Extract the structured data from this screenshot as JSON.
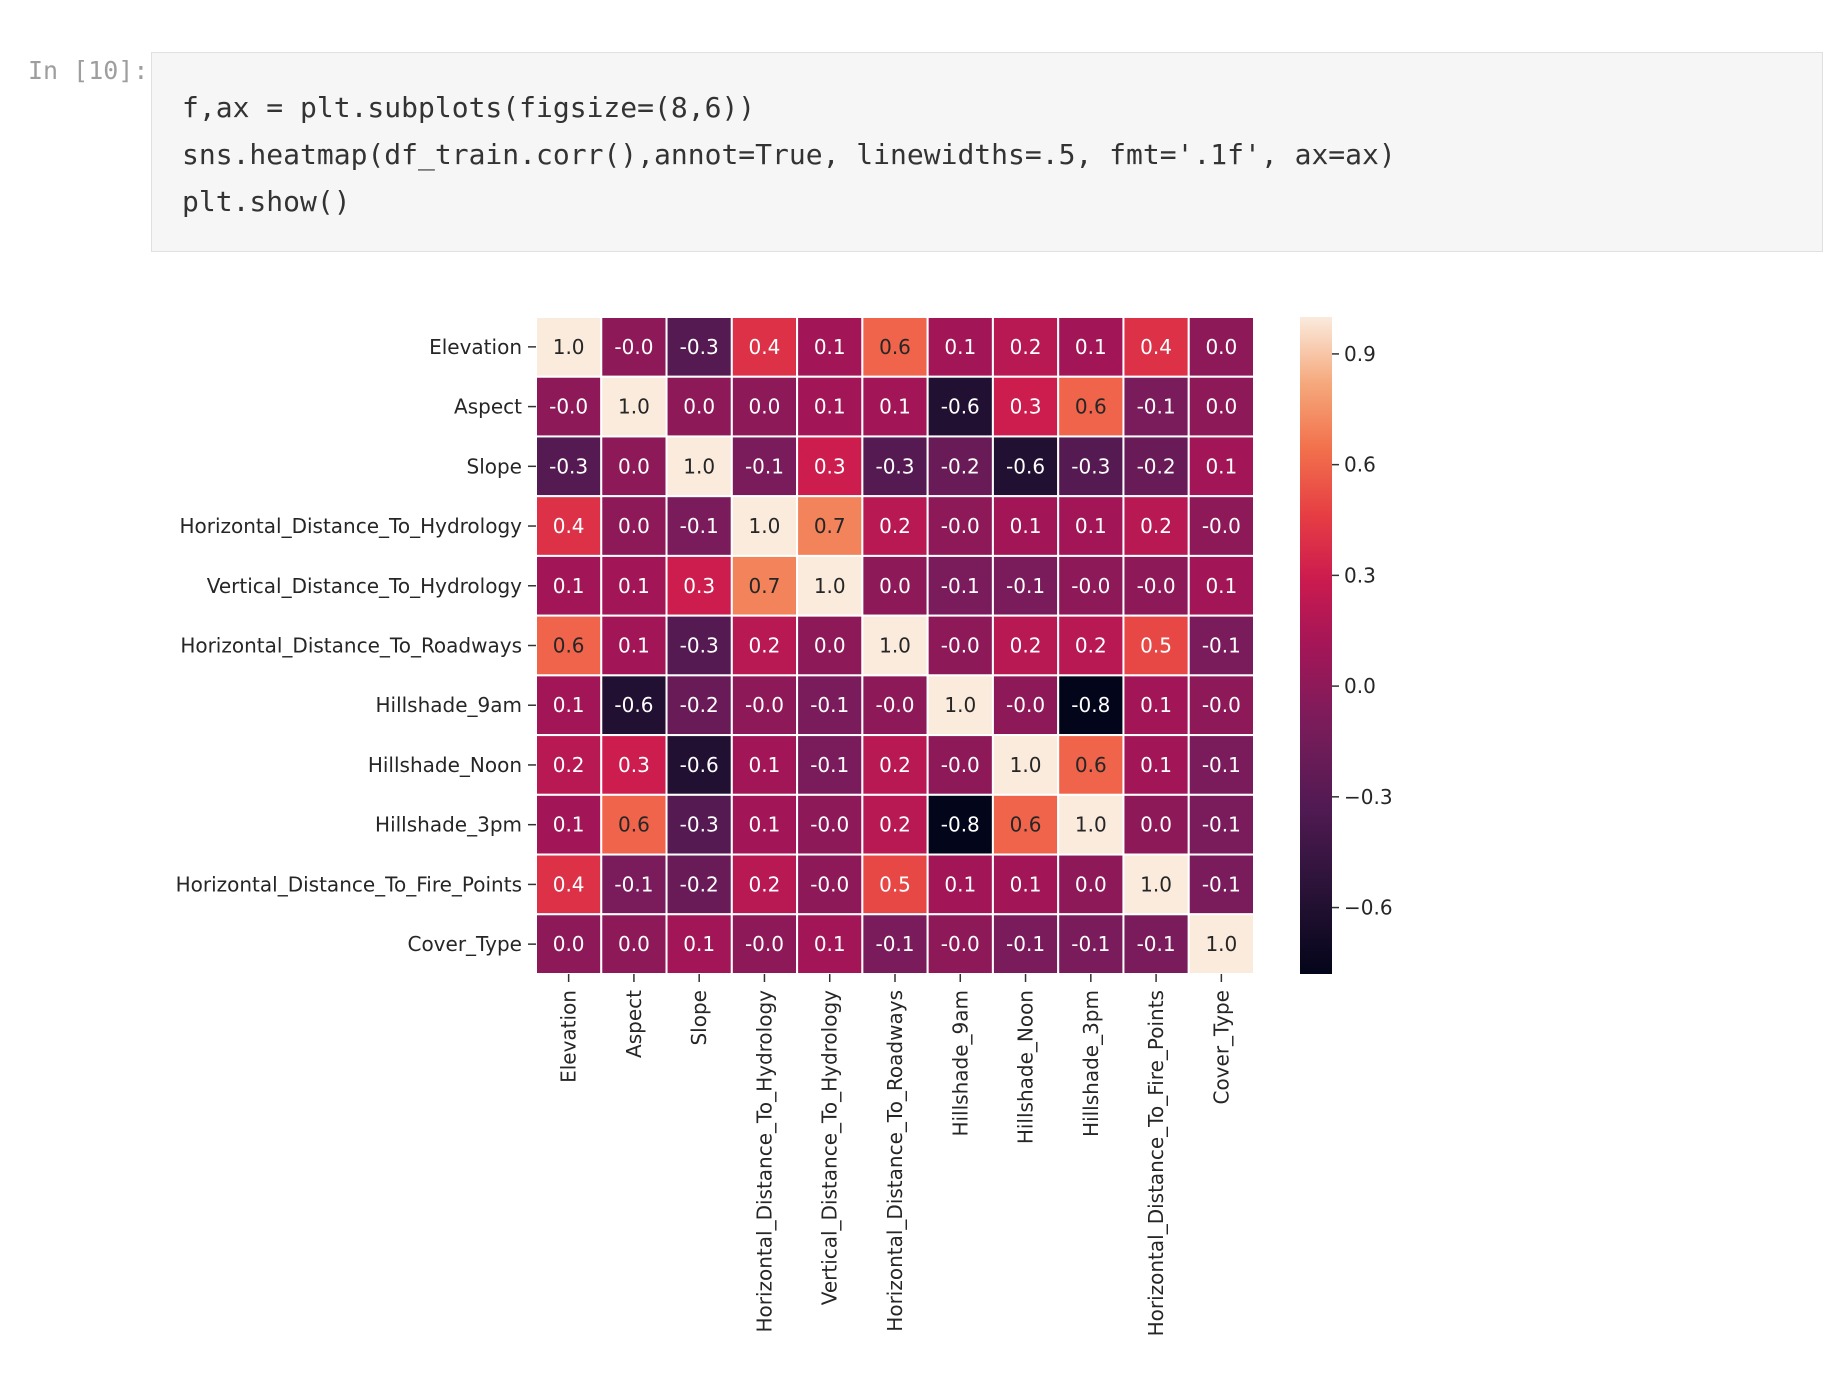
{
  "cell": {
    "prompt": "In [10]:",
    "code_lines": [
      "f,ax = plt.subplots(figsize=(8,6))",
      "sns.heatmap(df_train.corr(),annot=True, linewidths=.5, fmt='.1f', ax=ax)",
      "plt.show()"
    ]
  },
  "colors": {
    "code_background": "#f6f6f6",
    "cell_border": "#e0e0e0",
    "prompt_text": "#9e9e9e",
    "colormap": "rocket"
  },
  "chart_data": {
    "type": "heatmap",
    "title": "",
    "xlabel": "",
    "ylabel": "",
    "labels": [
      "Elevation",
      "Aspect",
      "Slope",
      "Horizontal_Distance_To_Hydrology",
      "Vertical_Distance_To_Hydrology",
      "Horizontal_Distance_To_Roadways",
      "Hillshade_9am",
      "Hillshade_Noon",
      "Hillshade_3pm",
      "Horizontal_Distance_To_Fire_Points",
      "Cover_Type"
    ],
    "matrix_text": [
      [
        "1.0",
        "-0.0",
        "-0.3",
        "0.4",
        "0.1",
        "0.6",
        "0.1",
        "0.2",
        "0.1",
        "0.4",
        "0.0"
      ],
      [
        "-0.0",
        "1.0",
        "0.0",
        "0.0",
        "0.1",
        "0.1",
        "-0.6",
        "0.3",
        "0.6",
        "-0.1",
        "0.0"
      ],
      [
        "-0.3",
        "0.0",
        "1.0",
        "-0.1",
        "0.3",
        "-0.3",
        "-0.2",
        "-0.6",
        "-0.3",
        "-0.2",
        "0.1"
      ],
      [
        "0.4",
        "0.0",
        "-0.1",
        "1.0",
        "0.7",
        "0.2",
        "-0.0",
        "0.1",
        "0.1",
        "0.2",
        "-0.0"
      ],
      [
        "0.1",
        "0.1",
        "0.3",
        "0.7",
        "1.0",
        "0.0",
        "-0.1",
        "-0.1",
        "-0.0",
        "-0.0",
        "0.1"
      ],
      [
        "0.6",
        "0.1",
        "-0.3",
        "0.2",
        "0.0",
        "1.0",
        "-0.0",
        "0.2",
        "0.2",
        "0.5",
        "-0.1"
      ],
      [
        "0.1",
        "-0.6",
        "-0.2",
        "-0.0",
        "-0.1",
        "-0.0",
        "1.0",
        "-0.0",
        "-0.8",
        "0.1",
        "-0.0"
      ],
      [
        "0.2",
        "0.3",
        "-0.6",
        "0.1",
        "-0.1",
        "0.2",
        "-0.0",
        "1.0",
        "0.6",
        "0.1",
        "-0.1"
      ],
      [
        "0.1",
        "0.6",
        "-0.3",
        "0.1",
        "-0.0",
        "0.2",
        "-0.8",
        "0.6",
        "1.0",
        "0.0",
        "-0.1"
      ],
      [
        "0.4",
        "-0.1",
        "-0.2",
        "0.2",
        "-0.0",
        "0.5",
        "0.1",
        "0.1",
        "0.0",
        "1.0",
        "-0.1"
      ],
      [
        "0.0",
        "0.0",
        "0.1",
        "-0.0",
        "0.1",
        "-0.1",
        "-0.0",
        "-0.1",
        "-0.1",
        "-0.1",
        "1.0"
      ]
    ],
    "colorbar": {
      "ticks": [
        0.9,
        0.6,
        0.3,
        0.0,
        -0.3,
        -0.6
      ],
      "tick_labels": [
        "0.9",
        "0.6",
        "0.3",
        "0.0",
        "−0.3",
        "−0.6"
      ],
      "range": [
        -0.78,
        1.0
      ]
    },
    "grid": true,
    "linewidths": 0.5
  }
}
